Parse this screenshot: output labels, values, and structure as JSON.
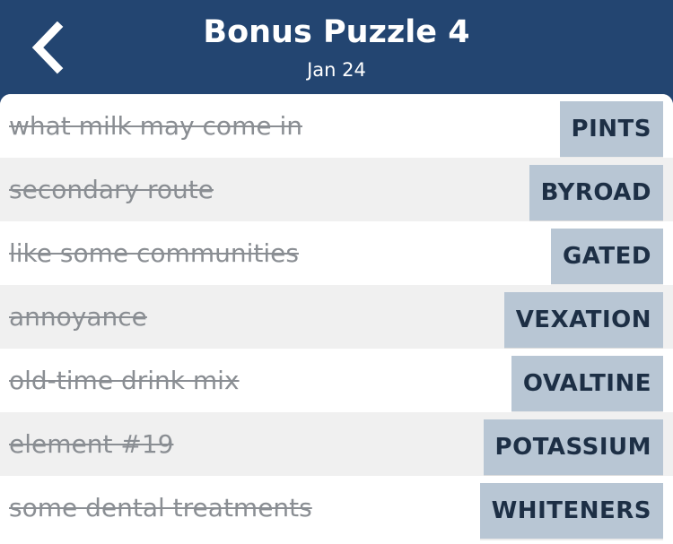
{
  "header": {
    "back_icon": "chevron-left-icon",
    "title": "Bonus Puzzle 4",
    "date": "Jan 24",
    "background_color": "#234571"
  },
  "items": [
    {
      "clue": "what milk may come in",
      "answer": "PINTS"
    },
    {
      "clue": "secondary route",
      "answer": "BYROAD"
    },
    {
      "clue": "like some communities",
      "answer": "GATED"
    },
    {
      "clue": "annoyance",
      "answer": "VEXATION"
    },
    {
      "clue": "old-time drink mix",
      "answer": "OVALTINE"
    },
    {
      "clue": "element #19",
      "answer": "POTASSIUM"
    },
    {
      "clue": "some dental treatments",
      "answer": "WHITENERS"
    }
  ],
  "colors": {
    "answer_tile": "#b8c6d4",
    "answer_text": "#1d2f45",
    "clue_text": "#8a8e93",
    "alt_row": "#f0f0f0"
  }
}
